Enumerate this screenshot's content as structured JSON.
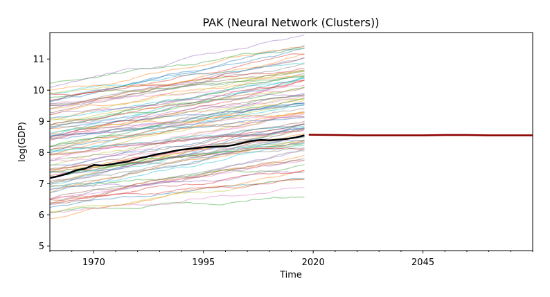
{
  "chart_data": {
    "type": "line",
    "title": "PAK (Neural Network (Clusters))",
    "xlabel": "Time",
    "ylabel": "log(GDP)",
    "xlim": [
      1960,
      2070
    ],
    "ylim": [
      4.85,
      11.85
    ],
    "x_ticks": [
      1970,
      1995,
      2020,
      2045
    ],
    "y_ticks": [
      5,
      6,
      7,
      8,
      9,
      10,
      11
    ],
    "grid": false,
    "legend": "none",
    "background_series": {
      "count": 95,
      "x_start": 1960,
      "x_end": 2018,
      "start_range": [
        5.8,
        10.3
      ],
      "end_range": [
        6.5,
        11.3
      ],
      "opacity": 0.45
    },
    "series": [
      {
        "role": "pakistan-history",
        "color": "#000000",
        "x": [
          1960,
          1962,
          1964,
          1966,
          1968,
          1970,
          1972,
          1974,
          1976,
          1978,
          1980,
          1982,
          1984,
          1986,
          1988,
          1990,
          1992,
          1994,
          1996,
          1998,
          2000,
          2002,
          2004,
          2006,
          2008,
          2010,
          2012,
          2014,
          2016,
          2018
        ],
        "values": [
          7.18,
          7.24,
          7.32,
          7.43,
          7.48,
          7.6,
          7.58,
          7.62,
          7.67,
          7.72,
          7.8,
          7.86,
          7.93,
          7.98,
          8.04,
          8.09,
          8.12,
          8.15,
          8.18,
          8.19,
          8.2,
          8.24,
          8.31,
          8.37,
          8.4,
          8.39,
          8.41,
          8.44,
          8.48,
          8.55
        ]
      },
      {
        "role": "forecast",
        "color": "#8b0000",
        "band_color": "#e8735a",
        "x": [
          2019,
          2025,
          2030,
          2035,
          2040,
          2045,
          2050,
          2055,
          2060,
          2065,
          2070
        ],
        "values": [
          8.57,
          8.56,
          8.55,
          8.55,
          8.55,
          8.55,
          8.56,
          8.56,
          8.55,
          8.55,
          8.55
        ],
        "band_half_width": 0.03
      }
    ],
    "palette": [
      "#1f77b4",
      "#ff7f0e",
      "#2ca02c",
      "#d62728",
      "#9467bd",
      "#8c564b",
      "#e377c2",
      "#7f7f7f",
      "#bcbd22",
      "#17becf"
    ]
  }
}
